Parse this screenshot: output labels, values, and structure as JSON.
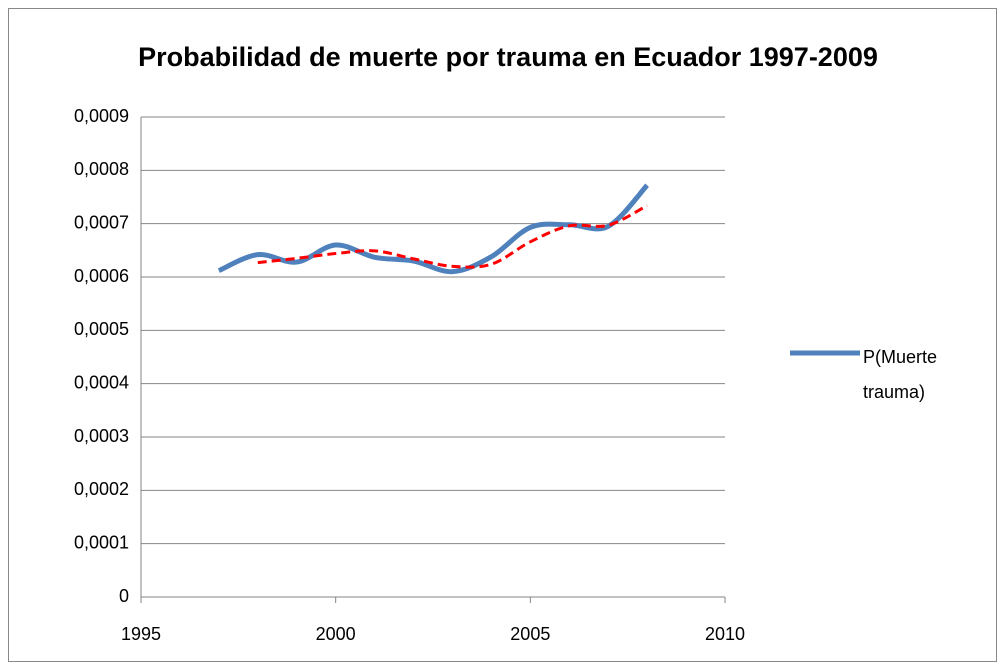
{
  "chart_data": {
    "type": "line",
    "title": "Probabilidad de muerte por trauma en Ecuador 1997-2009",
    "x": [
      1997,
      1998,
      1999,
      2000,
      2001,
      2002,
      2003,
      2004,
      2005,
      2006,
      2007,
      2008
    ],
    "series": [
      {
        "name": "P(Muerte trauma)",
        "color": "#4f81bd",
        "values": [
          0.000612,
          0.000642,
          0.000628,
          0.00066,
          0.000637,
          0.00063,
          0.00061,
          0.000638,
          0.000693,
          0.000698,
          0.000695,
          0.000772
        ]
      },
      {
        "color": "#ff0000",
        "values": [
          null,
          0.000627,
          0.000635,
          0.000644,
          0.000649,
          0.000634,
          0.00062,
          0.000624,
          0.000666,
          0.000696,
          0.000697,
          0.000734
        ]
      }
    ],
    "xlim": [
      1995,
      2010
    ],
    "xticks": [
      1995,
      2000,
      2005,
      2010
    ],
    "ylim": [
      0,
      0.0009
    ],
    "yticks": [
      0,
      {
        "value": 0.0001,
        "label": "0,0001"
      },
      {
        "value": 0.0002,
        "label": "0,0002"
      },
      {
        "value": 0.0003,
        "label": "0,0003"
      },
      {
        "value": 0.0004,
        "label": "0,0004"
      },
      {
        "value": 0.0005,
        "label": "0,0005"
      },
      {
        "value": 0.0006,
        "label": "0,0006"
      },
      {
        "value": 0.0007,
        "label": "0,0007"
      },
      {
        "value": 0.0008,
        "label": "0,0008"
      },
      {
        "value": 0.0009,
        "label": "0,0009"
      }
    ],
    "grid": true
  }
}
